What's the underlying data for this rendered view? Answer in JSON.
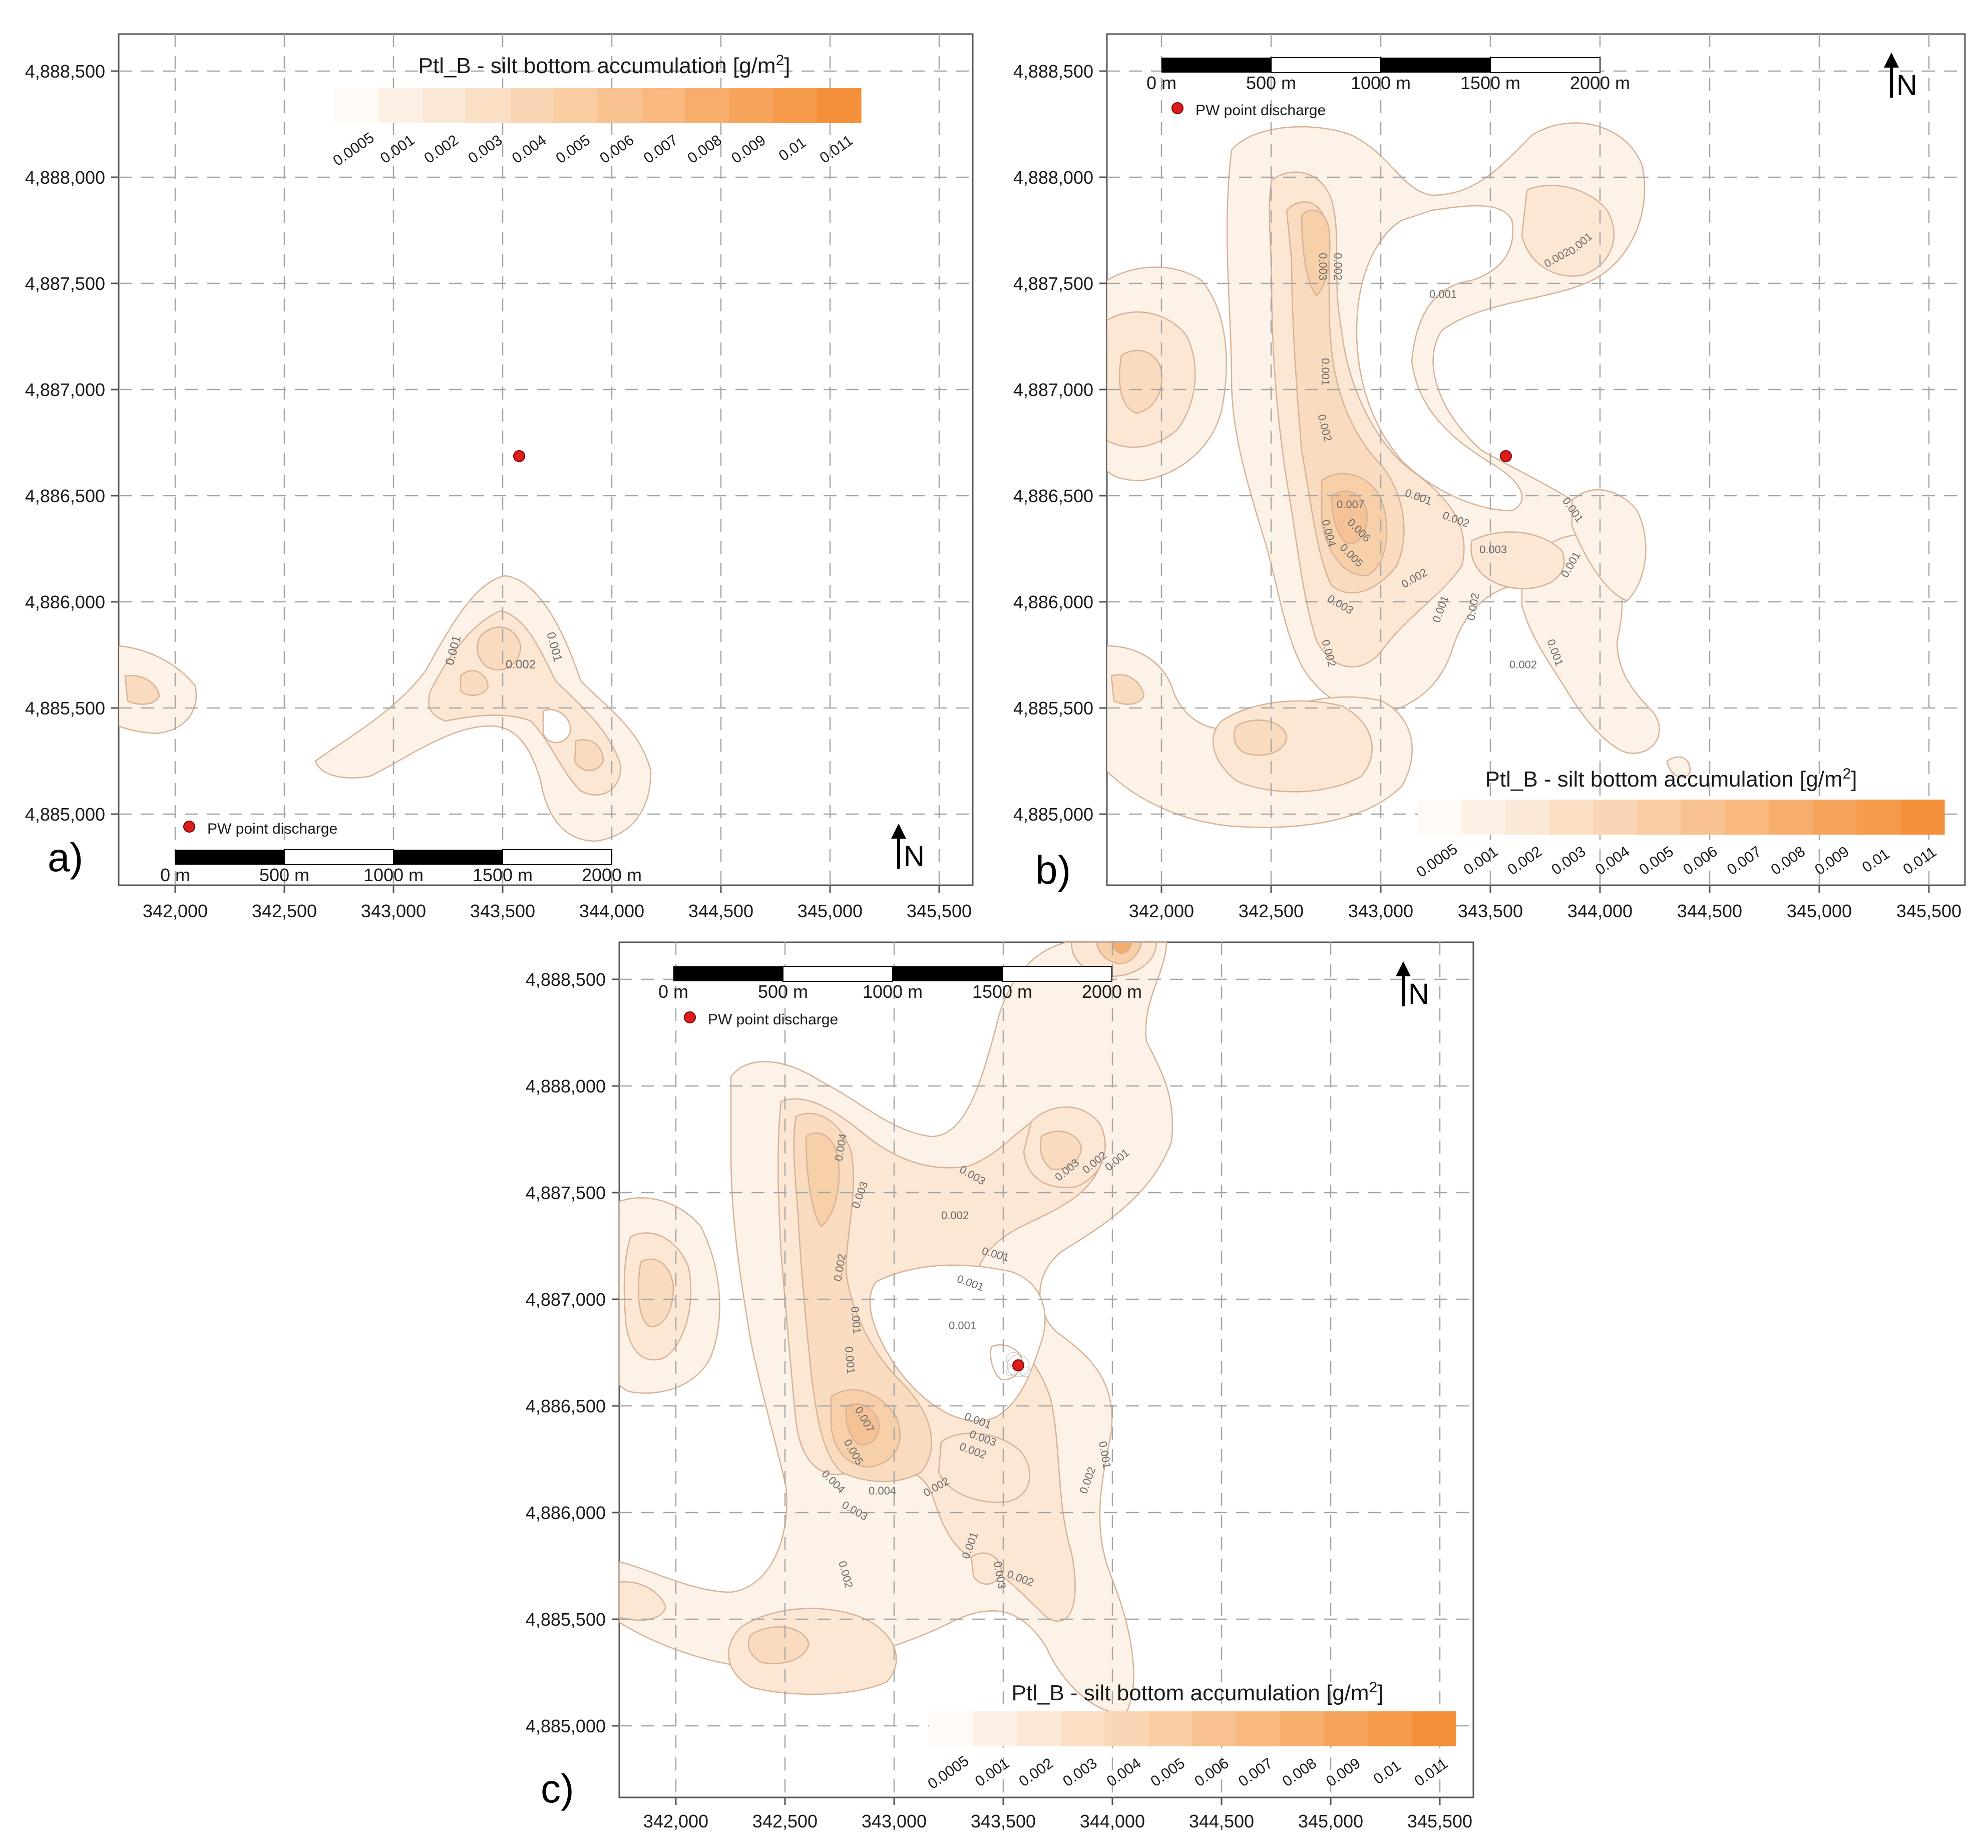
{
  "figure": {
    "panels": [
      {
        "letter": "a)",
        "legend_title": "Ptl_B - silt bottom accumulation [g/m",
        "legend_sup": "2",
        "legend_close": "]",
        "scale_labels": [
          "0 m",
          "500 m",
          "1000 m",
          "1500 m",
          "2000 m"
        ],
        "discharge_label": "PW point discharge",
        "north": "N",
        "y_ticks": [
          "4,888,500",
          "4,888,000",
          "4,887,500",
          "4,887,000",
          "4,886,500",
          "4,886,000",
          "4,885,500",
          "4,885,000"
        ],
        "x_ticks": [
          "342,000",
          "342,500",
          "343,000",
          "343,500",
          "344,000",
          "344,500",
          "345,000",
          "345,500"
        ],
        "contour_labels": [
          "0.001",
          "0.002",
          "0.001"
        ]
      },
      {
        "letter": "b)",
        "legend_title": "Ptl_B - silt bottom accumulation [g/m",
        "legend_sup": "2",
        "legend_close": "]",
        "scale_labels": [
          "0 m",
          "500 m",
          "1000 m",
          "1500 m",
          "2000 m"
        ],
        "discharge_label": "PW point discharge",
        "north": "N",
        "y_ticks": [
          "4,888,500",
          "4,888,000",
          "4,887,500",
          "4,887,000",
          "4,886,500",
          "4,886,000",
          "4,885,500",
          "4,885,000"
        ],
        "x_ticks": [
          "342,000",
          "342,500",
          "343,000",
          "343,500",
          "344,000",
          "344,500",
          "345,000",
          "345,500"
        ],
        "contour_labels": [
          "0.003",
          "0.002",
          "0.001",
          "0.002",
          "0.001",
          "0.001",
          "0.002",
          "0.007",
          "0.006",
          "0.004",
          "0.005",
          "0.003",
          "0.002",
          "0.001",
          "0.002",
          "0.003",
          "0.002",
          "0.001",
          "0.002",
          "0.001",
          "0.001",
          "0.002",
          "0.001"
        ]
      },
      {
        "letter": "c)",
        "legend_title": "Ptl_B - silt bottom accumulation [g/m",
        "legend_sup": "2",
        "legend_close": "]",
        "scale_labels": [
          "0 m",
          "500 m",
          "1000 m",
          "1500 m",
          "2000 m"
        ],
        "discharge_label": "PW point discharge",
        "north": "N",
        "y_ticks": [
          "4,888,500",
          "4,888,000",
          "4,887,500",
          "4,887,000",
          "4,886,500",
          "4,886,000",
          "4,885,500",
          "4,885,000"
        ],
        "x_ticks": [
          "342,000",
          "342,500",
          "343,000",
          "343,500",
          "344,000",
          "344,500",
          "345,000",
          "345,500"
        ],
        "contour_labels": [
          "0.004",
          "0.003",
          "0.003",
          "0.002",
          "0.001",
          "0.003",
          "0.002",
          "0.001",
          "0.002",
          "0.001",
          "0.001",
          "0.001",
          "0.001",
          "0.007",
          "0.005",
          "0.004",
          "0.004",
          "0.003",
          "0.002",
          "0.001",
          "0.003",
          "0.002",
          "0.001",
          "0.002",
          "0.002",
          "0.001",
          "0.003",
          "0.002"
        ]
      }
    ],
    "legend_ticks": [
      "0.0005",
      "0.001",
      "0.002",
      "0.003",
      "0.004",
      "0.005",
      "0.006",
      "0.007",
      "0.008",
      "0.009",
      "0.01",
      "0.011"
    ],
    "legend_colors": [
      "#fefaf5",
      "#fdf1e6",
      "#fce8d6",
      "#fbdfc5",
      "#fad6b4",
      "#f9cca2",
      "#f8c290",
      "#f8b87e",
      "#f7ae6d",
      "#f6a45c",
      "#f69a4b",
      "#f5903a"
    ],
    "colors": {
      "frame": "#555555",
      "grid": "#a6a6a6",
      "contour_line": "#c99f7f",
      "discharge_point": "#dd1c1c",
      "scale_black": "#000000"
    }
  }
}
